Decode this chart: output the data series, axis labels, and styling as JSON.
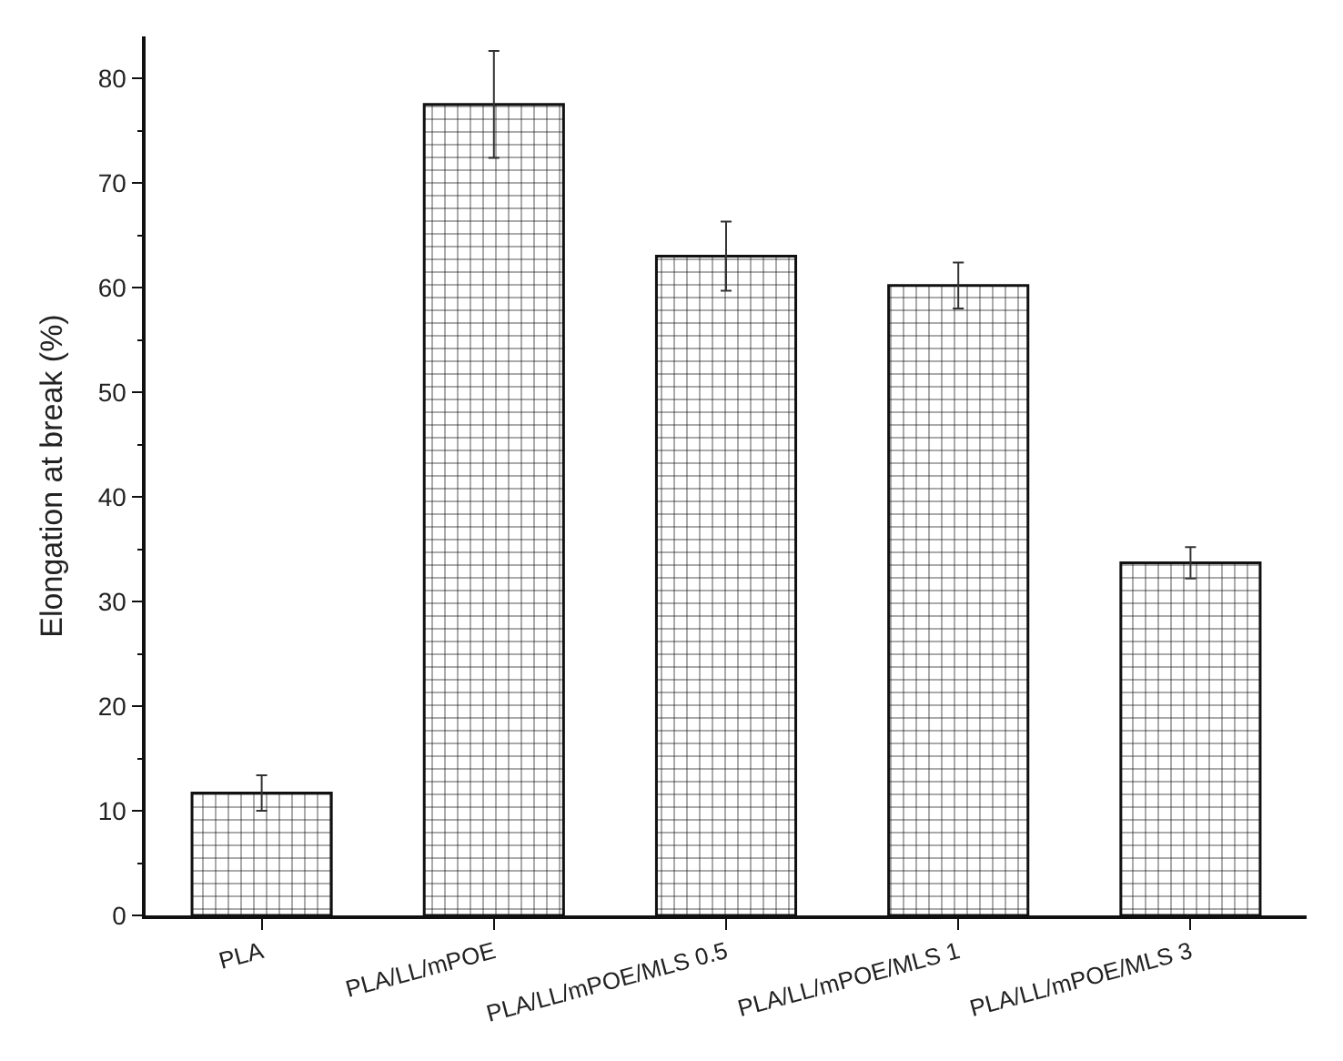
{
  "chart_data": {
    "type": "bar",
    "ylabel": "Elongation at break (%)",
    "categories": [
      "PLA",
      "PLA/LL/mPOE",
      "PLA/LL/mPOE/MLS 0.5",
      "PLA/LL/mPOE/MLS 1",
      "PLA/LL/mPOE/MLS 3"
    ],
    "values": [
      11.7,
      77.5,
      63.0,
      60.2,
      33.7
    ],
    "errors": [
      1.7,
      5.1,
      3.3,
      2.2,
      1.5
    ],
    "color": "#111111",
    "ylim": [
      0,
      84
    ],
    "yticks": [
      0,
      10,
      20,
      30,
      40,
      50,
      60,
      70,
      80
    ]
  }
}
